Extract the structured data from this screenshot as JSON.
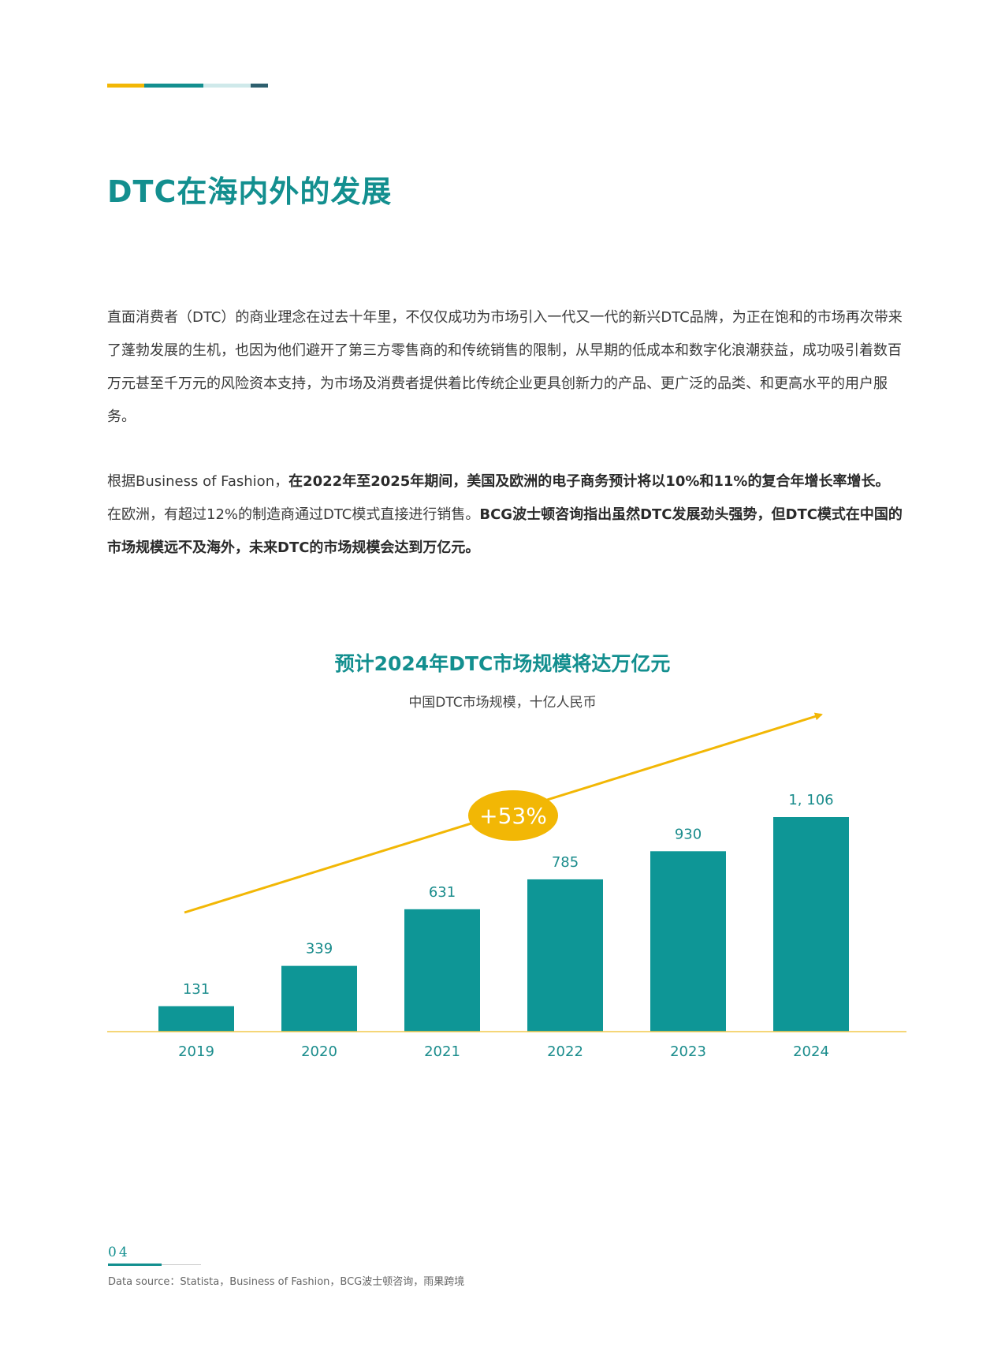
{
  "colors": {
    "accent_teal": "#138f8f",
    "bar_teal": "#0e9696",
    "accent_yellow": "#f2b705",
    "light_teal": "#cfe9ea",
    "dark_teal": "#2d5f6e"
  },
  "page": {
    "title": "DTC在海内外的发展",
    "paragraph1": "直面消费者（DTC）的商业理念在过去十年里，不仅仅成功为市场引入一代又一代的新兴DTC品牌，为正在饱和的市场再次带来了蓬勃发展的生机，也因为他们避开了第三方零售商的和传统销售的限制，从早期的低成本和数字化浪潮获益，成功吸引着数百万元甚至千万元的风险资本支持，为市场及消费者提供着比传统企业更具创新力的产品、更广泛的品类、和更高水平的用户服务。",
    "paragraph2": {
      "s1": "根据Business of Fashion，",
      "s2": "在2022年至2025年期间，美国及欧洲的电子商务预计将以10%和11%的复合年增长率增长。",
      "s3": "在欧洲，有超过12%的制造商通过DTC模式直接进行销售。",
      "s4": "BCG波士顿咨询指出虽然DTC发展劲头强势，但DTC模式在中国的市场规模远不及海外，未来DTC的市场规模会达到万亿元。"
    }
  },
  "chart_data": {
    "type": "bar",
    "title": "预计2024年DTC市场规模将达万亿元",
    "subtitle": "中国DTC市场规模，十亿人民币",
    "categories": [
      "2019",
      "2020",
      "2021",
      "2022",
      "2023",
      "2024"
    ],
    "values": [
      131,
      339,
      631,
      785,
      930,
      1106
    ],
    "value_labels": [
      "131",
      "339",
      "631",
      "785",
      "930",
      "1, 106"
    ],
    "ylim": [
      0,
      1106
    ],
    "grid": false,
    "annotation": "+53%"
  },
  "footer": {
    "page_number": "04",
    "source": "Data source：Statista，Business of Fashion，BCG波士顿咨询，雨果跨境"
  }
}
